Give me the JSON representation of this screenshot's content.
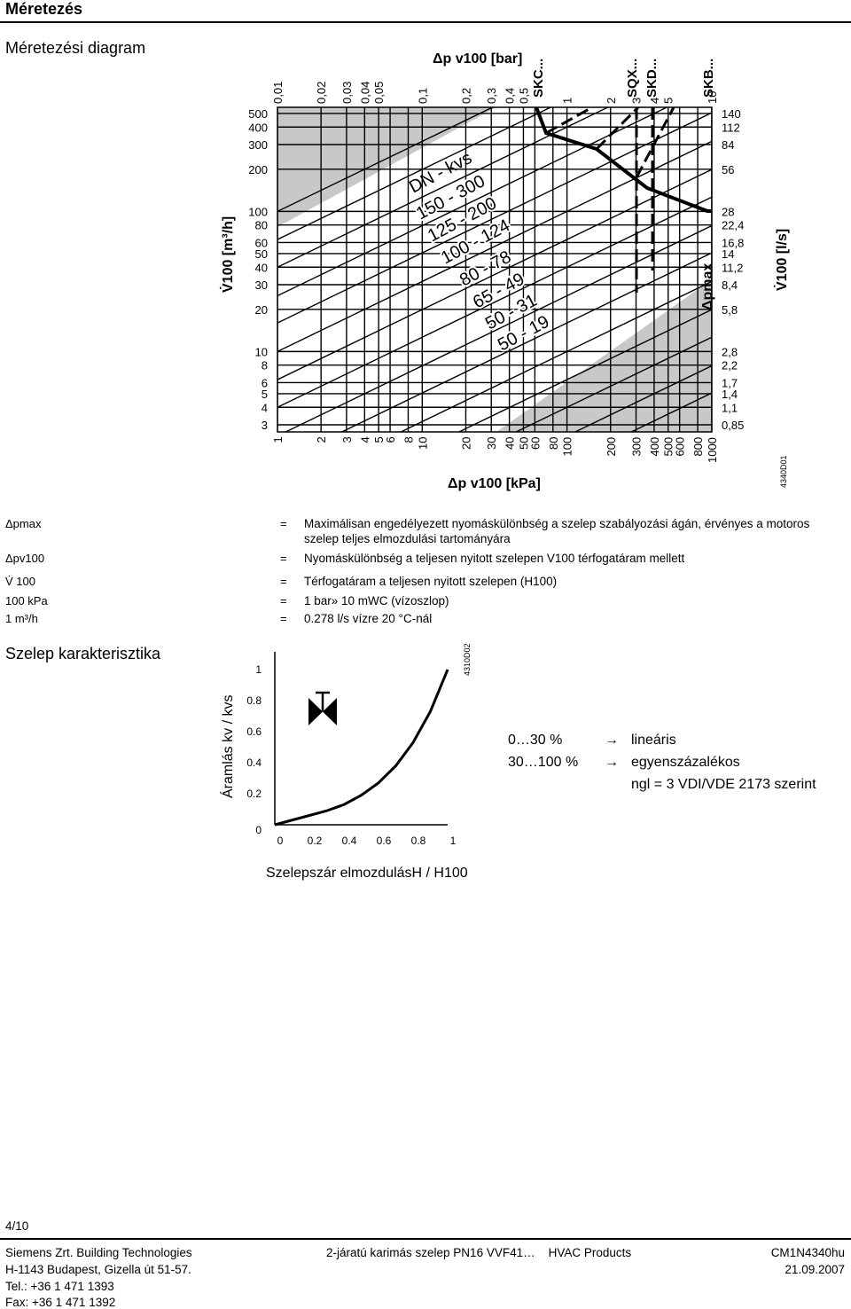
{
  "header": {
    "title": "Méretezés"
  },
  "sizing": {
    "title": "Méretezési diagram",
    "top_axis_label": "Δp v100 [bar]",
    "bottom_axis_label": "Δp v100 [kPa]",
    "left_axis_label": "V̇100 [m³/h]",
    "right_axis_label": "V̇100 [l/s]",
    "pmax_label": "Δpmax",
    "diagram_code": "4340D01",
    "dn_label": "DN - kvs",
    "bar_ticks": [
      "0,01",
      "0,02",
      "0,03",
      "0,04",
      "0,05",
      "0,1",
      "0,2",
      "0,3",
      "0,4",
      "0,5",
      "1",
      "2",
      "3",
      "4",
      "5",
      "10"
    ],
    "kpa_ticks": [
      "1",
      "2",
      "3",
      "4",
      "5",
      "6",
      "8",
      "10",
      "20",
      "30",
      "40",
      "50",
      "60",
      "80",
      "100",
      "200",
      "300",
      "400",
      "500",
      "600",
      "800",
      "1000"
    ],
    "m3h_ticks": [
      "500",
      "400",
      "300",
      "200",
      "100",
      "80",
      "60",
      "50",
      "40",
      "30",
      "20",
      "10",
      "8",
      "6",
      "5",
      "4",
      "3"
    ],
    "ls_ticks": [
      "140",
      "112",
      "84",
      "56",
      "28",
      "22,4",
      "16,8",
      "14",
      "11,2",
      "8,4",
      "5,8",
      "2,8",
      "2,2",
      "1,7",
      "1,4",
      "1,1",
      "0,85"
    ],
    "series_labels": [
      "SKC...",
      "SQX...",
      "SKD...",
      "SKB..."
    ],
    "dn_kvs": [
      "150 - 300",
      "125 - 200",
      "100 - 124",
      "80 - 78",
      "65 - 49",
      "50 - 31",
      "50 - 19"
    ]
  },
  "legend": [
    {
      "symbol": "Δpmax",
      "eq": "=",
      "text": "Maximálisan engedélyezett nyomáskülönbség a szelep szabályozási ágán, érvényes a motoros szelep teljes elmozdulási tartományára"
    },
    {
      "symbol": "Δpv100",
      "eq": "=",
      "text": "Nyomáskülönbség a teljesen nyitott szelepen V100 térfogatáram mellett"
    },
    {
      "symbol": "V̇ 100",
      "eq": "=",
      "text": "Térfogatáram a teljesen nyitott szelepen (H100)"
    },
    {
      "symbol": "100 kPa",
      "eq": "=",
      "text": "1 bar» 10 mWC (vízoszlop)"
    },
    {
      "symbol": "1 m³/h",
      "eq": "=",
      "text": "0.278 l/s vízre 20 °C-nál"
    }
  ],
  "characteristic": {
    "title": "Szelep karakterisztika",
    "y_label": "Áramlás kv / kvs",
    "x_label": "Szelepszár elmozdulásH / H100",
    "diagram_code": "4310D02",
    "y_ticks": [
      "1",
      "0.8",
      "0.6",
      "0.4",
      "0.2",
      "0"
    ],
    "x_ticks": [
      "0",
      "0.2",
      "0.4",
      "0.6",
      "0.8",
      "1"
    ],
    "rows": [
      {
        "range": "0…30 %",
        "arrow": "→",
        "desc": "lineáris"
      },
      {
        "range": "30…100 %",
        "arrow": "→",
        "desc": "egyenszázalékos"
      }
    ],
    "ngl": "ngl = 3 VDI/VDE 2173 szerint"
  },
  "chart_data": {
    "type": "line",
    "title": "",
    "xlabel": "Szelepszár elmozdulásH / H100",
    "ylabel": "Áramlás kv / kvs",
    "xlim": [
      0,
      1
    ],
    "ylim": [
      0,
      1
    ],
    "series": [
      {
        "x": [
          0,
          0.1,
          0.2,
          0.3,
          0.4,
          0.5,
          0.6,
          0.7,
          0.8,
          0.9,
          1.0
        ],
        "y": [
          0,
          0.03,
          0.06,
          0.09,
          0.13,
          0.19,
          0.27,
          0.38,
          0.53,
          0.73,
          1.0
        ]
      }
    ]
  },
  "page_number": "4/10",
  "footer": {
    "company": "Siemens Zrt. Building Technologies",
    "address": "H-1143 Budapest, Gizella út 51-57.",
    "tel": "Tel.: +36 1 471 1393",
    "fax": "Fax: +36 1 471 1392",
    "product": "2-járatú karimás szelep PN16 VVF41…    HVAC Products",
    "doc_code": "CM1N4340hu",
    "date": "21.09.2007"
  }
}
